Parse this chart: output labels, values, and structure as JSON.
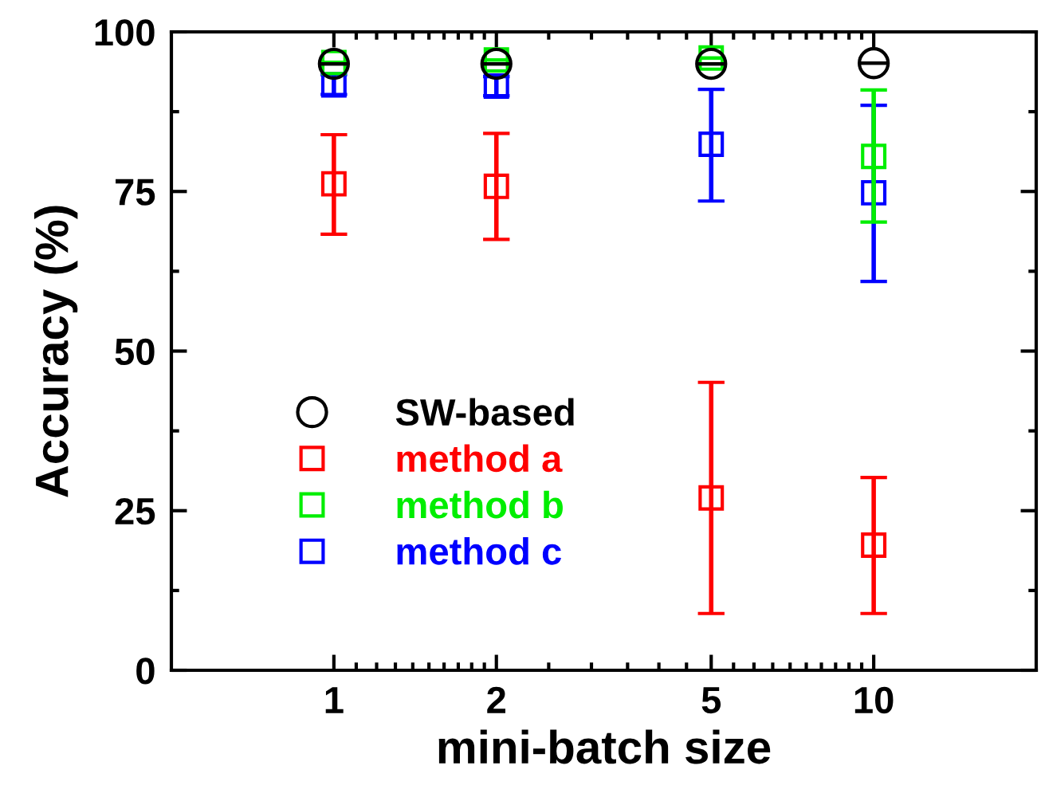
{
  "chart_data": {
    "type": "scatter",
    "xlabel": "mini-batch size",
    "ylabel": "Accuracy (%)",
    "log": "x",
    "xlim": [
      0.5,
      20
    ],
    "xticks": [
      1,
      2,
      5,
      10
    ],
    "ylim": [
      0,
      100
    ],
    "yticks": [
      0,
      25,
      50,
      75,
      100
    ],
    "x": [
      1,
      2,
      5,
      10
    ],
    "grid": false,
    "legend": "left",
    "marker": "square",
    "series": [
      {
        "name": "SW-based",
        "color": "#000000",
        "marker": "circle",
        "values": [
          95.0,
          95.0,
          95.0,
          95.1
        ],
        "errors": [
          null,
          null,
          null,
          null
        ]
      },
      {
        "name": "method a",
        "color": "#ff0000",
        "values": [
          76.2,
          75.8,
          27.0,
          19.6
        ],
        "errors": [
          [
            68.3,
            83.9
          ],
          [
            67.5,
            84.1
          ],
          [
            8.9,
            45.1
          ],
          [
            8.9,
            30.2
          ]
        ]
      },
      {
        "name": "method b",
        "color": "#00ee00",
        "values": [
          95.2,
          95.6,
          95.9,
          80.5
        ],
        "errors": [
          null,
          null,
          null,
          [
            70.2,
            90.9
          ]
        ]
      },
      {
        "name": "method c",
        "color": "#0000ff",
        "values": [
          91.7,
          91.5,
          82.4,
          74.8
        ],
        "errors": [
          [
            90.2,
            93.3
          ],
          [
            90.0,
            93.0
          ],
          [
            73.5,
            91.0
          ],
          [
            60.9,
            88.5
          ]
        ]
      }
    ]
  }
}
